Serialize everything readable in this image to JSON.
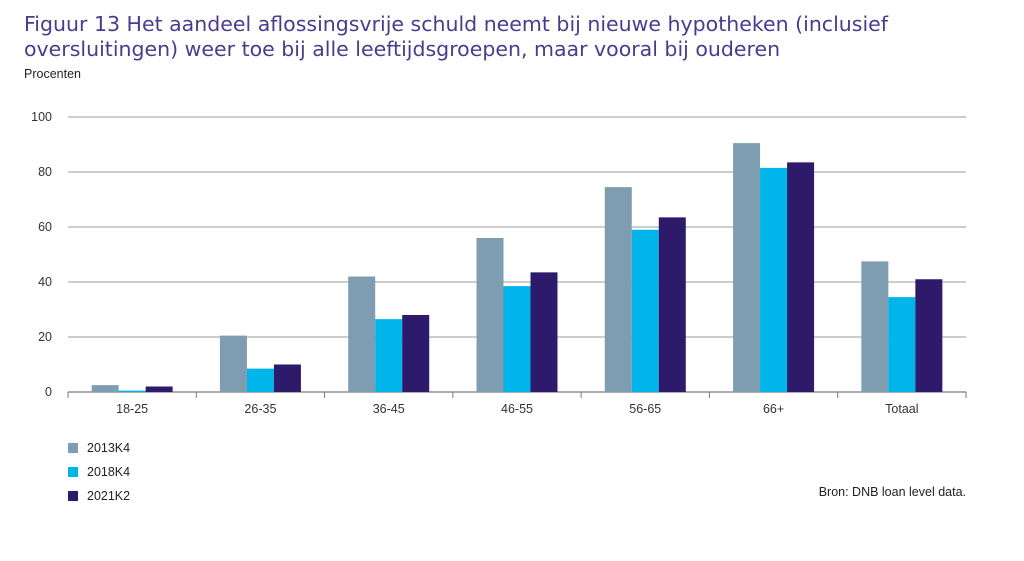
{
  "header": {
    "title": "Figuur 13  Het aandeel aflossingsvrije schuld neemt bij nieuwe hypotheken (inclusief oversluitingen) weer toe bij alle leeftijdsgroepen, maar vooral bij ouderen",
    "subtitle": "Procenten"
  },
  "source": "Bron: DNB loan level data.",
  "colors": {
    "title": "#4b3b8f",
    "series_2013K4": "#7e9db1",
    "series_2018K4": "#00b5e9",
    "series_2021K2": "#2d1a6b",
    "grid": "#7a7a7a",
    "tick_text": "#333333"
  },
  "legend": [
    {
      "label": "2013K4"
    },
    {
      "label": "2018K4"
    },
    {
      "label": "2021K2"
    }
  ],
  "chart_data": {
    "type": "bar",
    "title": "Figuur 13  Het aandeel aflossingsvrije schuld neemt bij nieuwe hypotheken (inclusief oversluitingen) weer toe bij alle leeftijdsgroepen, maar vooral bij ouderen",
    "ylabel": "Procenten",
    "xlabel": "",
    "categories": [
      "18-25",
      "26-35",
      "36-45",
      "46-55",
      "56-65",
      "66+",
      "Totaal"
    ],
    "series": [
      {
        "name": "2013K4",
        "values": [
          2.5,
          20.5,
          42,
          56,
          74.5,
          90.5,
          47.5
        ]
      },
      {
        "name": "2018K4",
        "values": [
          0.5,
          8.5,
          26.5,
          38.5,
          59,
          81.5,
          34.5
        ]
      },
      {
        "name": "2021K2",
        "values": [
          2,
          10,
          28,
          43.5,
          63.5,
          83.5,
          41
        ]
      }
    ],
    "ylim": [
      0,
      100
    ],
    "yticks": [
      0,
      20,
      40,
      60,
      80,
      100
    ],
    "grid": true,
    "legend_position": "bottom-left"
  }
}
